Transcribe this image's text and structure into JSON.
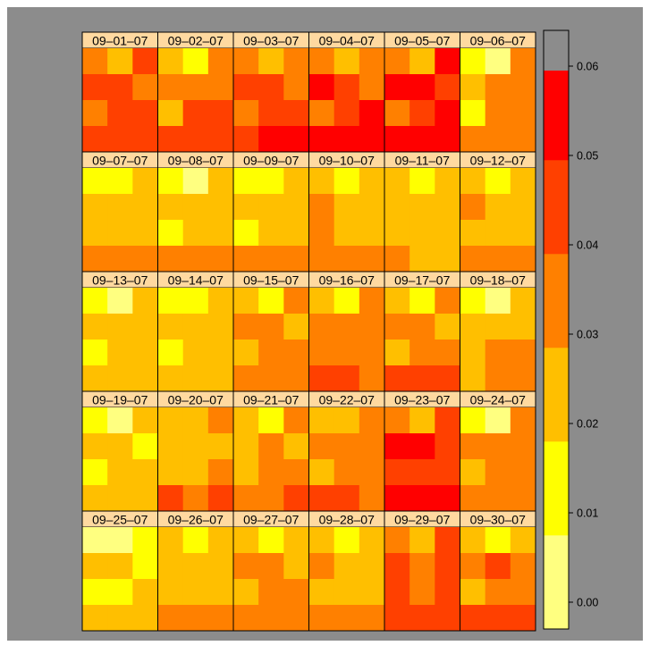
{
  "chart_data": {
    "type": "heatmap",
    "title": "",
    "xlabel": "",
    "ylabel": "",
    "layout": {
      "columns": 6,
      "rows": 5
    },
    "cell_grid": {
      "columns": 3,
      "rows": 4
    },
    "colorbar": {
      "ticks": [
        0.0,
        0.01,
        0.02,
        0.03,
        0.04,
        0.05,
        0.06
      ],
      "tick_labels": [
        "0.00",
        "0.01",
        "0.02",
        "0.03",
        "0.04",
        "0.05",
        "0.06"
      ],
      "range": [
        -0.003,
        0.064
      ],
      "breaks": [
        -0.003,
        0.0075,
        0.018,
        0.0285,
        0.039,
        0.0495,
        0.0595,
        0.064
      ],
      "colors": [
        "#FFFF80",
        "#FFFF00",
        "#FFBF00",
        "#FF8000",
        "#FF4000",
        "#FF0000"
      ]
    },
    "colors": {
      "background": "#8C8C8C",
      "strip": "#FFD9A0",
      "border": "#000000"
    },
    "panels": [
      {
        "label": "09–01–07",
        "levels": [
          [
            3,
            2,
            4
          ],
          [
            4,
            4,
            3
          ],
          [
            3,
            4,
            4
          ],
          [
            4,
            4,
            4
          ]
        ]
      },
      {
        "label": "09–02–07",
        "levels": [
          [
            2,
            1,
            3
          ],
          [
            3,
            3,
            3
          ],
          [
            2,
            4,
            4
          ],
          [
            4,
            4,
            4
          ]
        ]
      },
      {
        "label": "09–03–07",
        "levels": [
          [
            3,
            2,
            3
          ],
          [
            4,
            4,
            3
          ],
          [
            3,
            4,
            4
          ],
          [
            4,
            5,
            5
          ]
        ]
      },
      {
        "label": "09–04–07",
        "levels": [
          [
            3,
            2,
            3
          ],
          [
            5,
            4,
            3
          ],
          [
            3,
            4,
            5
          ],
          [
            5,
            5,
            5
          ]
        ]
      },
      {
        "label": "09–05–07",
        "levels": [
          [
            3,
            2,
            5
          ],
          [
            5,
            5,
            4
          ],
          [
            3,
            4,
            5
          ],
          [
            5,
            5,
            5
          ]
        ]
      },
      {
        "label": "09–06–07",
        "levels": [
          [
            1,
            0,
            3
          ],
          [
            2,
            3,
            3
          ],
          [
            1,
            3,
            3
          ],
          [
            3,
            3,
            3
          ]
        ]
      },
      {
        "label": "09–07–07",
        "levels": [
          [
            1,
            1,
            2
          ],
          [
            2,
            2,
            2
          ],
          [
            2,
            2,
            2
          ],
          [
            3,
            3,
            3
          ]
        ]
      },
      {
        "label": "09–08–07",
        "levels": [
          [
            1,
            0,
            2
          ],
          [
            2,
            2,
            2
          ],
          [
            1,
            2,
            2
          ],
          [
            3,
            3,
            3
          ]
        ]
      },
      {
        "label": "09–09–07",
        "levels": [
          [
            1,
            1,
            2
          ],
          [
            2,
            2,
            2
          ],
          [
            1,
            2,
            2
          ],
          [
            3,
            3,
            3
          ]
        ]
      },
      {
        "label": "09–10–07",
        "levels": [
          [
            2,
            1,
            2
          ],
          [
            3,
            2,
            2
          ],
          [
            3,
            2,
            2
          ],
          [
            3,
            3,
            3
          ]
        ]
      },
      {
        "label": "09–11–07",
        "levels": [
          [
            2,
            1,
            2
          ],
          [
            2,
            2,
            2
          ],
          [
            2,
            2,
            2
          ],
          [
            3,
            2,
            2
          ]
        ]
      },
      {
        "label": "09–12–07",
        "levels": [
          [
            2,
            1,
            2
          ],
          [
            3,
            2,
            2
          ],
          [
            2,
            2,
            2
          ],
          [
            3,
            3,
            3
          ]
        ]
      },
      {
        "label": "09–13–07",
        "levels": [
          [
            1,
            0,
            2
          ],
          [
            2,
            2,
            2
          ],
          [
            1,
            2,
            2
          ],
          [
            2,
            2,
            2
          ]
        ]
      },
      {
        "label": "09–14–07",
        "levels": [
          [
            1,
            1,
            2
          ],
          [
            2,
            2,
            2
          ],
          [
            1,
            2,
            2
          ],
          [
            2,
            2,
            2
          ]
        ]
      },
      {
        "label": "09–15–07",
        "levels": [
          [
            2,
            1,
            3
          ],
          [
            3,
            3,
            2
          ],
          [
            2,
            3,
            3
          ],
          [
            3,
            3,
            3
          ]
        ]
      },
      {
        "label": "09–16–07",
        "levels": [
          [
            2,
            1,
            3
          ],
          [
            3,
            3,
            3
          ],
          [
            3,
            3,
            3
          ],
          [
            4,
            4,
            3
          ]
        ]
      },
      {
        "label": "09–17–07",
        "levels": [
          [
            2,
            1,
            3
          ],
          [
            3,
            3,
            2
          ],
          [
            2,
            3,
            3
          ],
          [
            4,
            4,
            4
          ]
        ]
      },
      {
        "label": "09–18–07",
        "levels": [
          [
            1,
            0,
            2
          ],
          [
            2,
            2,
            2
          ],
          [
            2,
            3,
            3
          ],
          [
            2,
            3,
            3
          ]
        ]
      },
      {
        "label": "09–19–07",
        "levels": [
          [
            1,
            0,
            2
          ],
          [
            2,
            2,
            1
          ],
          [
            1,
            2,
            2
          ],
          [
            2,
            2,
            2
          ]
        ]
      },
      {
        "label": "09–20–07",
        "levels": [
          [
            2,
            2,
            3
          ],
          [
            2,
            2,
            2
          ],
          [
            2,
            2,
            3
          ],
          [
            4,
            3,
            4
          ]
        ]
      },
      {
        "label": "09–21–07",
        "levels": [
          [
            2,
            1,
            3
          ],
          [
            2,
            3,
            2
          ],
          [
            2,
            3,
            3
          ],
          [
            3,
            3,
            4
          ]
        ]
      },
      {
        "label": "09–22–07",
        "levels": [
          [
            2,
            2,
            3
          ],
          [
            3,
            3,
            3
          ],
          [
            2,
            3,
            3
          ],
          [
            4,
            4,
            3
          ]
        ]
      },
      {
        "label": "09–23–07",
        "levels": [
          [
            3,
            2,
            4
          ],
          [
            5,
            5,
            4
          ],
          [
            4,
            4,
            4
          ],
          [
            5,
            5,
            5
          ]
        ]
      },
      {
        "label": "09–24–07",
        "levels": [
          [
            1,
            0,
            3
          ],
          [
            3,
            3,
            3
          ],
          [
            2,
            3,
            3
          ],
          [
            3,
            3,
            3
          ]
        ]
      },
      {
        "label": "09–25–07",
        "levels": [
          [
            0,
            0,
            1
          ],
          [
            2,
            2,
            1
          ],
          [
            1,
            1,
            2
          ],
          [
            2,
            2,
            2
          ]
        ]
      },
      {
        "label": "09–26–07",
        "levels": [
          [
            2,
            1,
            2
          ],
          [
            2,
            2,
            2
          ],
          [
            2,
            2,
            2
          ],
          [
            3,
            3,
            3
          ]
        ]
      },
      {
        "label": "09–27–07",
        "levels": [
          [
            2,
            1,
            2
          ],
          [
            3,
            3,
            2
          ],
          [
            2,
            3,
            3
          ],
          [
            3,
            3,
            3
          ]
        ]
      },
      {
        "label": "09–28–07",
        "levels": [
          [
            2,
            1,
            2
          ],
          [
            3,
            2,
            2
          ],
          [
            2,
            2,
            2
          ],
          [
            3,
            3,
            3
          ]
        ]
      },
      {
        "label": "09–29–07",
        "levels": [
          [
            3,
            2,
            4
          ],
          [
            4,
            3,
            4
          ],
          [
            4,
            3,
            4
          ],
          [
            4,
            4,
            4
          ]
        ]
      },
      {
        "label": "09–30–07",
        "levels": [
          [
            2,
            1,
            2
          ],
          [
            3,
            4,
            3
          ],
          [
            2,
            3,
            3
          ],
          [
            4,
            4,
            4
          ]
        ]
      }
    ]
  }
}
